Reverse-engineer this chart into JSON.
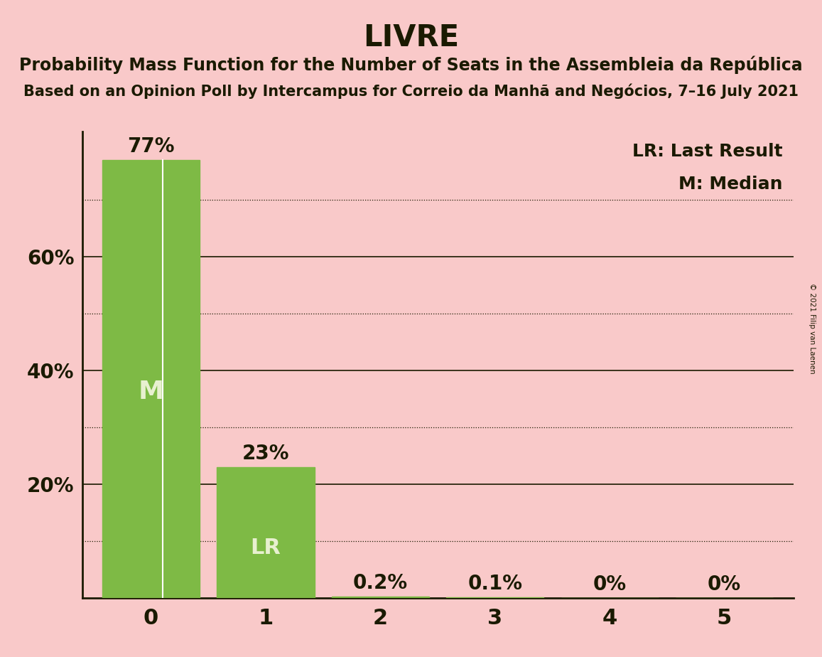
{
  "title": "LIVRE",
  "subtitle1": "Probability Mass Function for the Number of Seats in the Assembleia da República",
  "subtitle2": "Based on an Opinion Poll by Intercampus for Correio da Manhã and Negócios, 7–16 July 2021",
  "copyright_text": "© 2021 Filip van Laenen",
  "categories": [
    0,
    1,
    2,
    3,
    4,
    5
  ],
  "values": [
    0.77,
    0.23,
    0.002,
    0.001,
    0.0,
    0.0
  ],
  "bar_labels": [
    "77%",
    "23%",
    "0.2%",
    "0.1%",
    "0%",
    "0%"
  ],
  "bar_color": "#7eba45",
  "background_color": "#f9c9c9",
  "text_color": "#1a1a00",
  "label_color_inside": "#e8f0d0",
  "ylim": [
    0,
    0.82
  ],
  "yticks": [
    0.0,
    0.2,
    0.4,
    0.6
  ],
  "ytick_labels": [
    "",
    "20%",
    "40%",
    "60%"
  ],
  "grid_major_levels": [
    0.2,
    0.4,
    0.6
  ],
  "grid_minor_levels": [
    0.1,
    0.3,
    0.5,
    0.7
  ],
  "grid_major_color": "#1a1a00",
  "grid_minor_color": "#1a1a00",
  "median_bar": 0,
  "lr_bar": 1,
  "legend_lr": "LR: Last Result",
  "legend_m": "M: Median",
  "bar_width": 0.85,
  "title_fontsize": 30,
  "subtitle_fontsize": 17,
  "subtitle2_fontsize": 15,
  "axis_fontsize": 20,
  "bar_label_fontsize": 20,
  "inside_label_fontsize": 26,
  "legend_fontsize": 18
}
